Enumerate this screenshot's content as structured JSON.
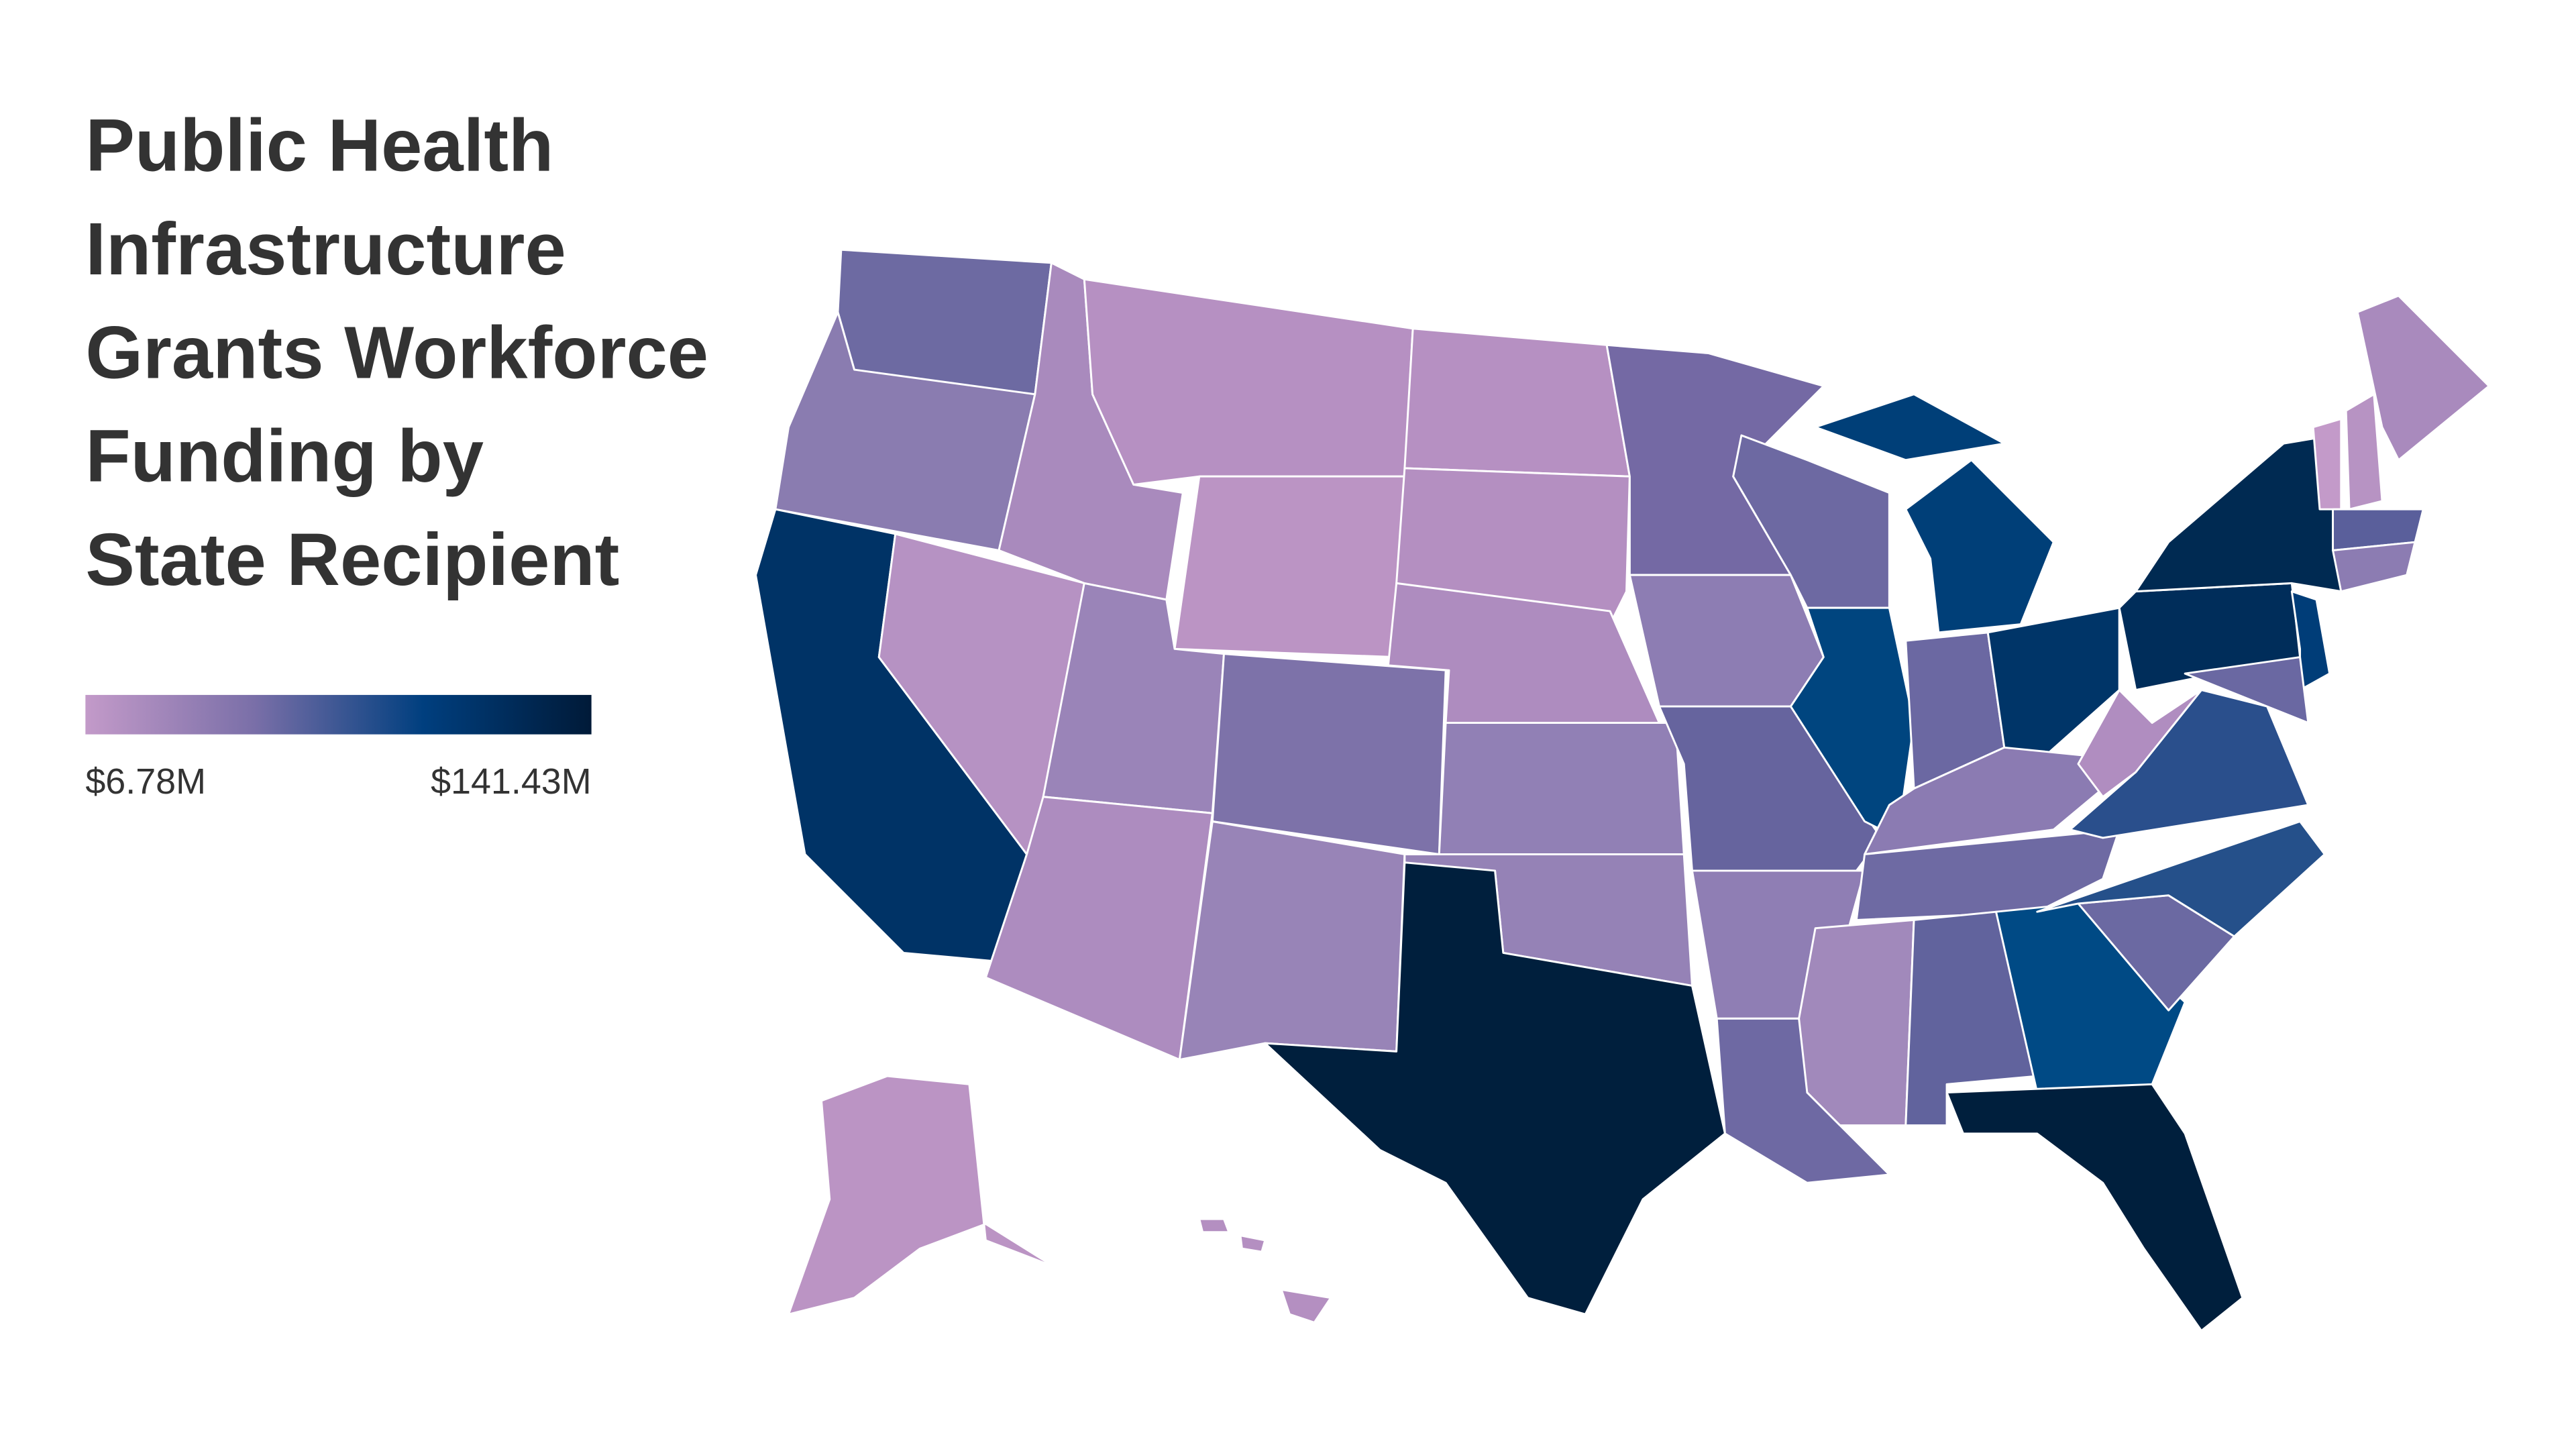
{
  "title": [
    "Public Health",
    "Infrastructure",
    "Grants Workforce",
    "Funding by",
    "State Recipient"
  ],
  "legend": {
    "min_label": "$6.78M",
    "max_label": "$141.43M",
    "colors": [
      "#c39ac9",
      "#7a6fa8",
      "#003f7f",
      "#001a38"
    ]
  }
}
